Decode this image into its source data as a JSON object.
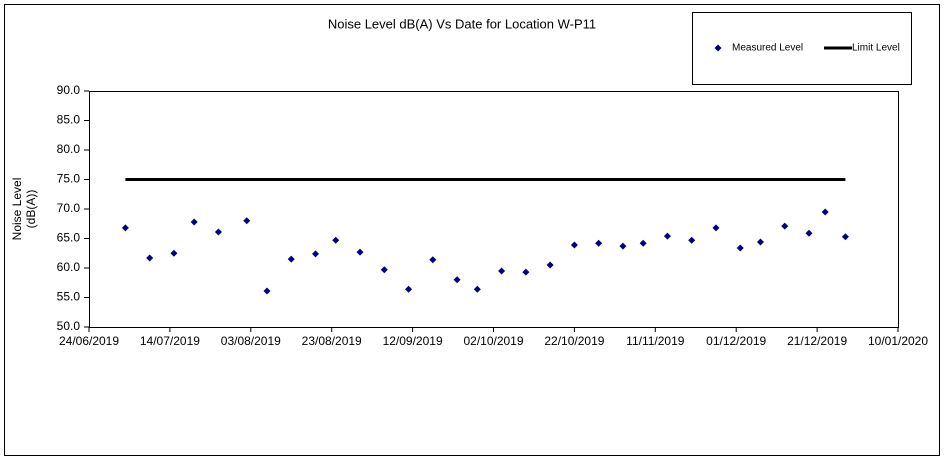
{
  "chart_data": {
    "type": "scatter",
    "title": "Noise Level dB(A) Vs Date for Location W-P11",
    "y_label": [
      "Noise Level",
      "(dB(A))"
    ],
    "xlim": [
      "24/06/2019",
      "10/01/2020"
    ],
    "xticks": [
      "24/06/2019",
      "14/07/2019",
      "03/08/2019",
      "23/08/2019",
      "12/09/2019",
      "02/10/2019",
      "22/10/2019",
      "11/11/2019",
      "01/12/2019",
      "21/12/2019",
      "10/01/2020"
    ],
    "ylim": [
      50,
      90
    ],
    "yticks": [
      {
        "value": 50,
        "label": "50.0"
      },
      {
        "value": 55,
        "label": "55.0"
      },
      {
        "value": 60,
        "label": "60.0"
      },
      {
        "value": 65,
        "label": "65.0"
      },
      {
        "value": 70,
        "label": "70.0"
      },
      {
        "value": 75,
        "label": "75.0"
      },
      {
        "value": 80,
        "label": "80.0"
      },
      {
        "value": 85,
        "label": "85.0"
      },
      {
        "value": 90,
        "label": "90.0"
      }
    ],
    "grid": false,
    "legend": "top-right",
    "series": [
      {
        "name": "Measured Level",
        "color": "#000080",
        "marker": "diamond",
        "x": [
          "03/07/2019",
          "09/07/2019",
          "15/07/2019",
          "20/07/2019",
          "26/07/2019",
          "02/08/2019",
          "07/08/2019",
          "13/08/2019",
          "19/08/2019",
          "24/08/2019",
          "30/08/2019",
          "05/09/2019",
          "11/09/2019",
          "17/09/2019",
          "23/09/2019",
          "28/09/2019",
          "04/10/2019",
          "10/10/2019",
          "16/10/2019",
          "22/10/2019",
          "28/10/2019",
          "03/11/2019",
          "08/11/2019",
          "14/11/2019",
          "20/11/2019",
          "26/11/2019",
          "02/12/2019",
          "07/12/2019",
          "13/12/2019",
          "19/12/2019",
          "23/12/2019",
          "28/12/2019"
        ],
        "values": [
          66.8,
          61.7,
          62.5,
          67.8,
          66.1,
          68.0,
          56.1,
          61.5,
          62.4,
          64.7,
          62.7,
          59.7,
          56.4,
          61.4,
          58.0,
          56.4,
          59.5,
          59.3,
          60.5,
          63.9,
          64.2,
          63.7,
          64.2,
          65.4,
          64.7,
          66.8,
          63.4,
          64.4,
          67.1,
          65.9,
          69.5,
          65.3
        ]
      },
      {
        "name": "Limit Level",
        "color": "#000000",
        "marker": "line",
        "x": [
          "03/07/2019",
          "28/12/2019"
        ],
        "values": [
          75,
          75
        ]
      }
    ]
  }
}
